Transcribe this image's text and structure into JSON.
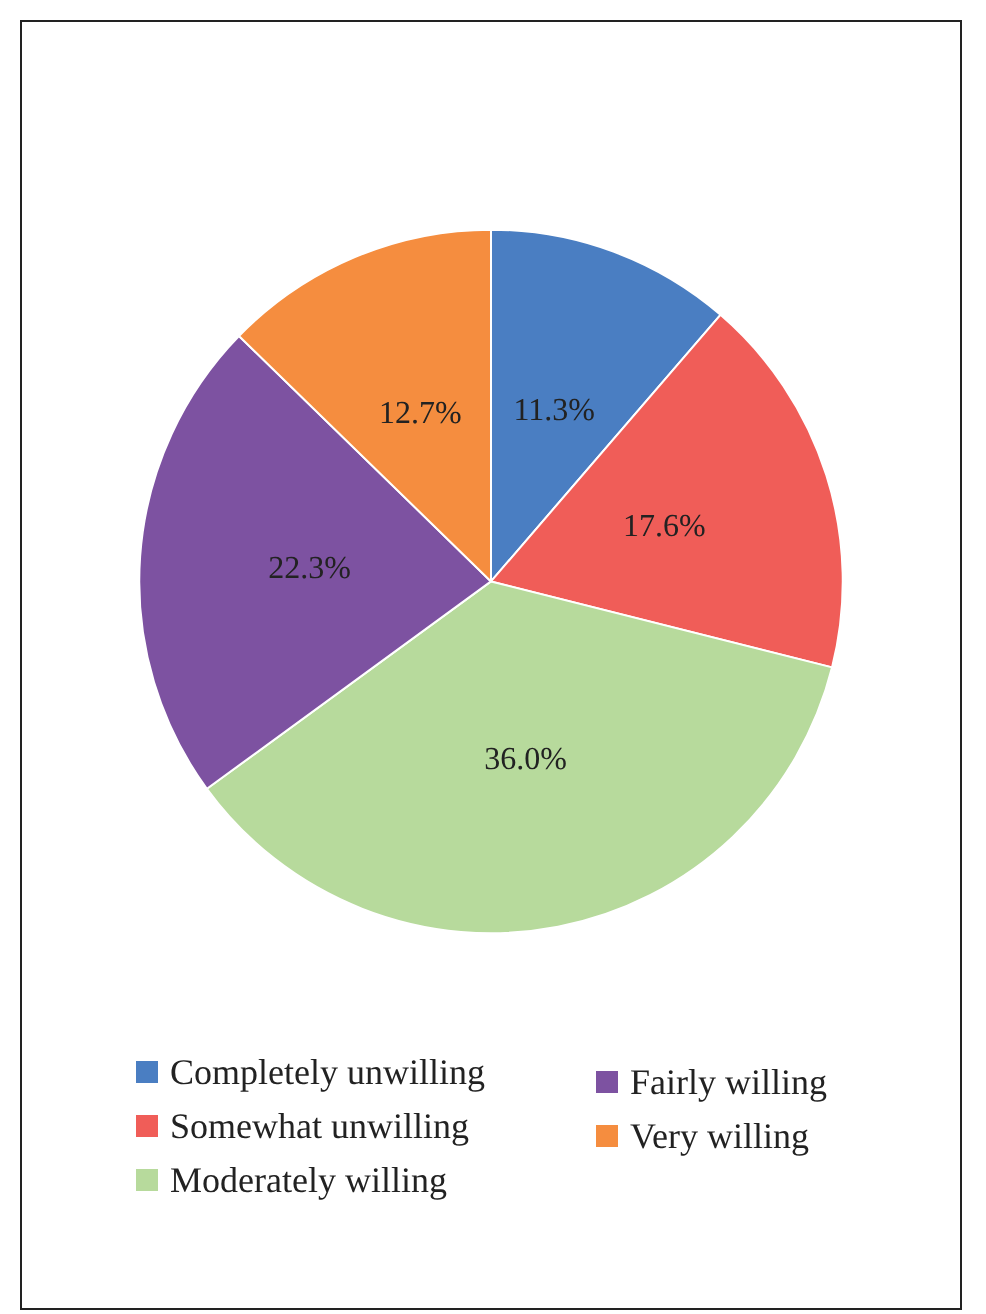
{
  "chart_data": {
    "type": "pie",
    "categories": [
      "Completely unwilling",
      "Somewhat unwilling",
      "Moderately willing",
      "Fairly willing",
      "Very willing"
    ],
    "values": [
      11.3,
      17.6,
      36.0,
      22.3,
      12.7
    ],
    "colors": [
      "#4a7ec2",
      "#f05d58",
      "#b7da9c",
      "#7d52a1",
      "#f58d3f"
    ],
    "value_labels": [
      "11.3%",
      "17.6%",
      "36.0%",
      "22.3%",
      "12.7%"
    ],
    "legend": "bottom"
  }
}
